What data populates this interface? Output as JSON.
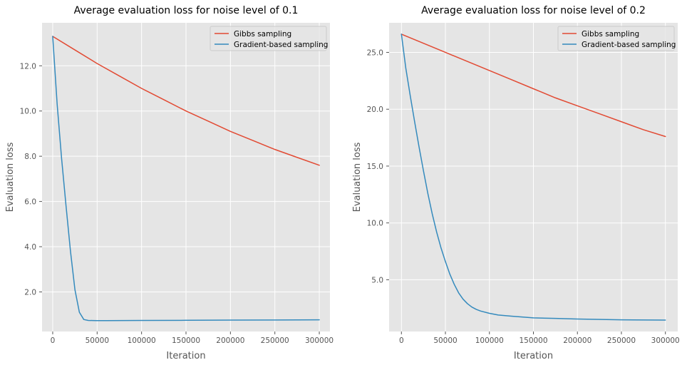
{
  "chart_data": [
    {
      "type": "line",
      "title": "Average evaluation loss for noise level of 0.1",
      "xlabel": "Iteration",
      "ylabel": "Evaluation loss",
      "xlim": [
        -12000,
        312000
      ],
      "ylim": [
        0.25,
        13.9
      ],
      "xticks": [
        0,
        50000,
        100000,
        150000,
        200000,
        250000,
        300000
      ],
      "xtick_labels": [
        "0",
        "50000",
        "100000",
        "150000",
        "200000",
        "250000",
        "300000"
      ],
      "yticks": [
        2.0,
        4.0,
        6.0,
        8.0,
        10.0,
        12.0
      ],
      "ytick_labels": [
        "2.0",
        "4.0",
        "6.0",
        "8.0",
        "10.0",
        "12.0"
      ],
      "grid": true,
      "legend_position": "top-right",
      "series": [
        {
          "name": "Gibbs sampling",
          "color": "#E24A33",
          "x": [
            0,
            25000,
            50000,
            75000,
            100000,
            125000,
            150000,
            175000,
            200000,
            225000,
            250000,
            275000,
            300000
          ],
          "y": [
            13.3,
            12.7,
            12.1,
            11.55,
            11.0,
            10.5,
            10.0,
            9.55,
            9.1,
            8.7,
            8.3,
            7.95,
            7.6
          ]
        },
        {
          "name": "Gradient-based sampling",
          "color": "#348ABD",
          "x": [
            0,
            5000,
            10000,
            15000,
            20000,
            25000,
            30000,
            35000,
            40000,
            45000,
            50000,
            60000,
            80000,
            100000,
            150000,
            200000,
            250000,
            300000
          ],
          "y": [
            13.3,
            10.3,
            7.9,
            5.8,
            3.8,
            2.1,
            1.1,
            0.78,
            0.74,
            0.735,
            0.73,
            0.73,
            0.735,
            0.74,
            0.745,
            0.755,
            0.76,
            0.765
          ]
        }
      ]
    },
    {
      "type": "line",
      "title": "Average evaluation loss for noise level of 0.2",
      "xlabel": "Iteration",
      "ylabel": "Evaluation loss",
      "xlim": [
        -14000,
        314000
      ],
      "ylim": [
        0.45,
        27.6
      ],
      "xticks": [
        0,
        50000,
        100000,
        150000,
        200000,
        250000,
        300000
      ],
      "xtick_labels": [
        "0",
        "50000",
        "100000",
        "150000",
        "200000",
        "250000",
        "300000"
      ],
      "yticks": [
        5.0,
        10.0,
        15.0,
        20.0,
        25.0
      ],
      "ytick_labels": [
        "5.0",
        "10.0",
        "15.0",
        "20.0",
        "25.0"
      ],
      "grid": true,
      "legend_position": "top-right",
      "series": [
        {
          "name": "Gibbs sampling",
          "color": "#E24A33",
          "x": [
            0,
            25000,
            50000,
            75000,
            100000,
            125000,
            150000,
            175000,
            200000,
            225000,
            250000,
            275000,
            300000
          ],
          "y": [
            26.6,
            25.8,
            25.0,
            24.2,
            23.4,
            22.6,
            21.8,
            21.0,
            20.3,
            19.6,
            18.9,
            18.2,
            17.6
          ]
        },
        {
          "name": "Gradient-based sampling",
          "color": "#348ABD",
          "x": [
            0,
            5000,
            10000,
            15000,
            20000,
            25000,
            30000,
            35000,
            40000,
            45000,
            50000,
            55000,
            60000,
            65000,
            70000,
            75000,
            80000,
            85000,
            90000,
            100000,
            110000,
            125000,
            150000,
            175000,
            200000,
            250000,
            300000
          ],
          "y": [
            26.6,
            23.6,
            21.2,
            18.9,
            16.7,
            14.6,
            12.6,
            10.8,
            9.2,
            7.8,
            6.6,
            5.5,
            4.6,
            3.85,
            3.3,
            2.9,
            2.6,
            2.4,
            2.25,
            2.05,
            1.9,
            1.8,
            1.65,
            1.6,
            1.55,
            1.48,
            1.45
          ]
        }
      ]
    }
  ]
}
